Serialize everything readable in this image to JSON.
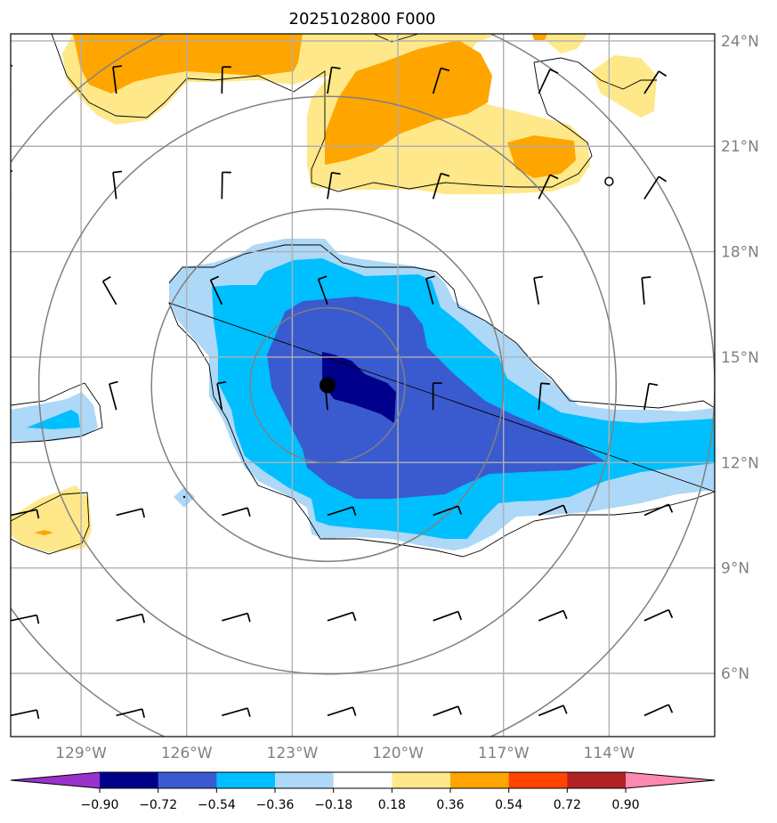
{
  "title": "2025102800 F000",
  "map": {
    "lon_range": [
      -131,
      -111
    ],
    "lat_range": [
      4.2,
      24.2
    ],
    "lon_ticks": [
      {
        "value": -129,
        "label": "129°W"
      },
      {
        "value": -126,
        "label": "126°W"
      },
      {
        "value": -123,
        "label": "123°W"
      },
      {
        "value": -120,
        "label": "120°W"
      },
      {
        "value": -117,
        "label": "117°W"
      },
      {
        "value": -114,
        "label": "114°W"
      }
    ],
    "lat_ticks": [
      {
        "value": 24,
        "label": "24°N"
      },
      {
        "value": 21,
        "label": "21°N"
      },
      {
        "value": 18,
        "label": "18°N"
      },
      {
        "value": 15,
        "label": "15°N"
      },
      {
        "value": 12,
        "label": "12°N"
      },
      {
        "value": 9,
        "label": "9°N"
      },
      {
        "value": 6,
        "label": "6°N"
      }
    ],
    "storm_center": {
      "lon": -122,
      "lat": 14.2
    },
    "open_circle_marker": {
      "lon": -114,
      "lat": 20.0
    },
    "range_rings_deg": [
      2.2,
      5.0,
      8.2,
      11.0
    ]
  },
  "colorbar": {
    "levels": [
      "−0.90",
      "−0.72",
      "−0.54",
      "−0.36",
      "−0.18",
      "0.18",
      "0.36",
      "0.54",
      "0.72",
      "0.90"
    ],
    "colors": [
      "#9932cc",
      "#00008b",
      "#3a5bcf",
      "#00bfff",
      "#add8f7",
      "#ffffff",
      "#ffe88a",
      "#ffa500",
      "#ff4500",
      "#b22222",
      "#ff88b0"
    ]
  },
  "colors": {
    "lt_blue": "#add8f7",
    "blue": "#00bfff",
    "mid_blue": "#3a5bcf",
    "navy": "#00008b",
    "lt_yellow": "#ffe88a",
    "orange": "#ffa500",
    "orange_red": "#ff4500"
  }
}
